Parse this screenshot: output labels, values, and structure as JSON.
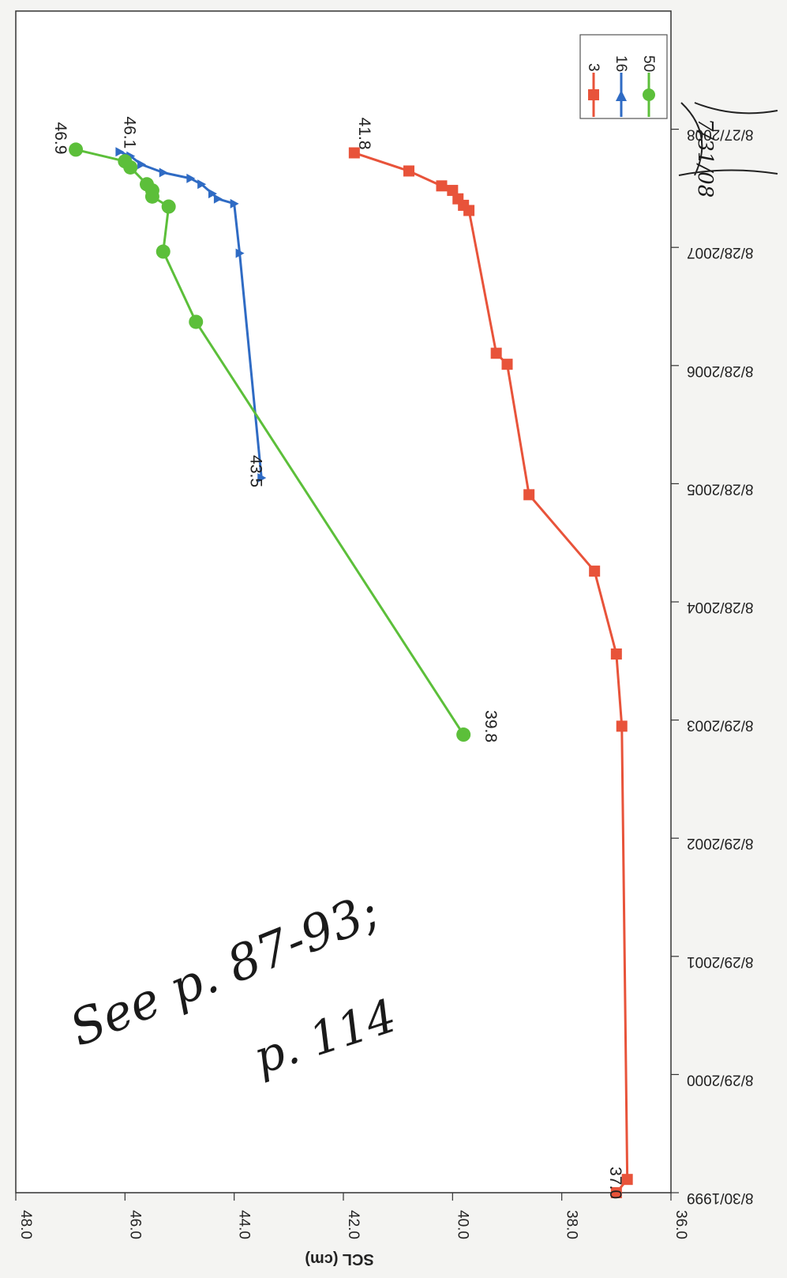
{
  "chart_data": {
    "type": "line",
    "title": "",
    "ylabel": "SCL (cm)",
    "xlabel": "",
    "ylim": [
      36.0,
      48.0
    ],
    "y_ticks": [
      "36.0",
      "38.0",
      "40.0",
      "42.0",
      "44.0",
      "46.0",
      "48.0"
    ],
    "x_ticks": [
      "8/30/1999",
      "8/29/2000",
      "8/29/2001",
      "8/29/2002",
      "8/29/2003",
      "8/28/2004",
      "8/28/2005",
      "8/28/2006",
      "8/28/2007",
      "8/27/2008"
    ],
    "legend_position": "top-right",
    "series": [
      {
        "name": "3",
        "color": "#e8533a",
        "marker": "square",
        "points": [
          {
            "x": "1999-08-30",
            "y": 37.0
          },
          {
            "x": "1999-10-10",
            "y": 36.8
          },
          {
            "x": "2003-08-10",
            "y": 36.9
          },
          {
            "x": "2004-03-20",
            "y": 37.0
          },
          {
            "x": "2004-12-01",
            "y": 37.4
          },
          {
            "x": "2005-07-25",
            "y": 38.6
          },
          {
            "x": "2006-09-01",
            "y": 39.0
          },
          {
            "x": "2006-10-05",
            "y": 39.2
          },
          {
            "x": "2007-12-20",
            "y": 39.7
          },
          {
            "x": "2008-01-05",
            "y": 39.8
          },
          {
            "x": "2008-01-25",
            "y": 39.9
          },
          {
            "x": "2008-02-20",
            "y": 40.0
          },
          {
            "x": "2008-03-05",
            "y": 40.2
          },
          {
            "x": "2008-04-20",
            "y": 40.8
          },
          {
            "x": "2008-06-15",
            "y": 41.8
          }
        ]
      },
      {
        "name": "16",
        "color": "#2f6bc4",
        "marker": "triangle",
        "points": [
          {
            "x": "2005-09-15",
            "y": 43.5
          },
          {
            "x": "2007-08-10",
            "y": 43.9
          },
          {
            "x": "2008-01-10",
            "y": 44.0
          },
          {
            "x": "2008-01-25",
            "y": 44.3
          },
          {
            "x": "2008-02-10",
            "y": 44.4
          },
          {
            "x": "2008-03-10",
            "y": 44.6
          },
          {
            "x": "2008-03-28",
            "y": 44.8
          },
          {
            "x": "2008-04-15",
            "y": 45.3
          },
          {
            "x": "2008-05-10",
            "y": 45.7
          },
          {
            "x": "2008-06-05",
            "y": 45.9
          },
          {
            "x": "2008-06-18",
            "y": 46.1
          }
        ]
      },
      {
        "name": "50",
        "color": "#5cbf3a",
        "marker": "circle",
        "points": [
          {
            "x": "2003-07-15",
            "y": 39.8
          },
          {
            "x": "2007-01-10",
            "y": 44.7
          },
          {
            "x": "2007-08-15",
            "y": 45.3
          },
          {
            "x": "2008-01-01",
            "y": 45.2
          },
          {
            "x": "2008-02-01",
            "y": 45.5
          },
          {
            "x": "2008-02-20",
            "y": 45.5
          },
          {
            "x": "2008-03-10",
            "y": 45.6
          },
          {
            "x": "2008-05-01",
            "y": 45.9
          },
          {
            "x": "2008-05-20",
            "y": 46.0
          },
          {
            "x": "2008-06-25",
            "y": 46.9
          }
        ]
      }
    ],
    "data_labels": [
      {
        "series": "3",
        "text": "41.8",
        "at": "2008-06-15"
      },
      {
        "series": "3",
        "text": "37.0",
        "at": "1999-08-30"
      },
      {
        "series": "16",
        "text": "46.1",
        "at": "2008-06-18"
      },
      {
        "series": "16",
        "text": "43.5",
        "at": "2005-09-15"
      },
      {
        "series": "50",
        "text": "46.9",
        "at": "2008-06-25"
      },
      {
        "series": "50",
        "text": "39.8",
        "at": "2003-07-15"
      }
    ]
  },
  "annotations": {
    "note_line1": "See p. 87-93;",
    "note_line2": "p. 114",
    "margin_note": "7/31/08"
  }
}
